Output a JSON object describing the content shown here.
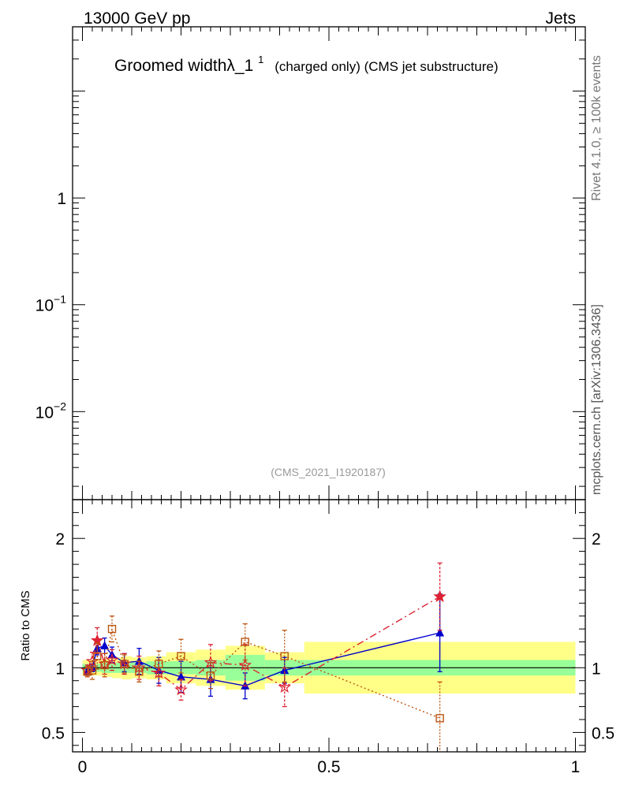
{
  "header": {
    "energy_label": "13000 GeV pp",
    "category_label": "Jets"
  },
  "side": {
    "rivet_label": "Rivet 4.1.0, ≥ 100k events",
    "mcplots_label": "mcplots.cern.ch [arXiv:1306.3436]"
  },
  "colors": {
    "band_inner": "#99ff99",
    "band_outer": "#ffff88",
    "series_blue": "#0000cc",
    "series_red": "#dd2233",
    "series_brown": "#bb5511"
  },
  "chart_data": [
    {
      "type": "line",
      "panel": "main",
      "title": "Groomed widthλ_1",
      "title_sup": "1",
      "subtitle": "(charged only) (CMS jet substructure)",
      "watermark": "(CMS_2021_I1920187)",
      "yscale": "log",
      "ylim": [
        0.0015,
        40
      ],
      "y_ticks": [
        {
          "value": 1,
          "base": "1",
          "exp": ""
        },
        {
          "value": 0.1,
          "base": "10",
          "exp": "−1"
        },
        {
          "value": 0.01,
          "base": "10",
          "exp": "−2"
        }
      ],
      "series": []
    },
    {
      "type": "line",
      "panel": "ratio",
      "ylabel": "Ratio to CMS",
      "xlim": [
        -0.02,
        1.02
      ],
      "ylim": [
        0.35,
        2.3
      ],
      "x_ticks": [
        {
          "value": 0,
          "label": "0"
        },
        {
          "value": 0.5,
          "label": "0.5"
        },
        {
          "value": 1,
          "label": "1"
        }
      ],
      "y_ticks": [
        {
          "value": 0.5,
          "label": "0.5"
        },
        {
          "value": 1,
          "label": "1"
        },
        {
          "value": 2,
          "label": "2"
        }
      ],
      "reference_line": 1,
      "bands": [
        {
          "x0": 0.0,
          "x1": 0.02,
          "inner": 0.03,
          "outer": 0.06
        },
        {
          "x0": 0.02,
          "x1": 0.04,
          "inner": 0.03,
          "outer": 0.06
        },
        {
          "x0": 0.04,
          "x1": 0.06,
          "inner": 0.04,
          "outer": 0.07
        },
        {
          "x0": 0.06,
          "x1": 0.08,
          "inner": 0.04,
          "outer": 0.08
        },
        {
          "x0": 0.08,
          "x1": 0.1,
          "inner": 0.04,
          "outer": 0.09
        },
        {
          "x0": 0.1,
          "x1": 0.13,
          "inner": 0.04,
          "outer": 0.08
        },
        {
          "x0": 0.13,
          "x1": 0.17,
          "inner": 0.05,
          "outer": 0.09
        },
        {
          "x0": 0.17,
          "x1": 0.23,
          "inner": 0.05,
          "outer": 0.12
        },
        {
          "x0": 0.23,
          "x1": 0.29,
          "inner": 0.06,
          "outer": 0.14
        },
        {
          "x0": 0.29,
          "x1": 0.37,
          "inner": 0.1,
          "outer": 0.17
        },
        {
          "x0": 0.37,
          "x1": 0.45,
          "inner": 0.06,
          "outer": 0.12
        },
        {
          "x0": 0.45,
          "x1": 1.0,
          "inner": 0.06,
          "outer": 0.2
        }
      ],
      "series": [
        {
          "name": "blue-triangles",
          "color": "#0000cc",
          "marker": "triangle",
          "dash": "",
          "x": [
            0.01,
            0.02,
            0.03,
            0.045,
            0.06,
            0.085,
            0.115,
            0.155,
            0.2,
            0.26,
            0.33,
            0.41,
            0.725
          ],
          "y": [
            0.97,
            1.0,
            1.15,
            1.17,
            1.1,
            1.04,
            1.05,
            0.98,
            0.93,
            0.91,
            0.86,
            0.98,
            1.27
          ],
          "err": [
            0.02,
            0.03,
            0.05,
            0.06,
            0.06,
            0.07,
            0.1,
            0.1,
            0.12,
            0.13,
            0.1,
            0.1,
            0.3
          ]
        },
        {
          "name": "red-stars",
          "color": "#dd2233",
          "marker": "star",
          "dash": "9,4,2,4",
          "x": [
            0.01,
            0.02,
            0.03,
            0.045,
            0.06,
            0.085,
            0.115,
            0.155,
            0.2,
            0.26,
            0.33,
            0.41,
            0.725
          ],
          "y": [
            0.98,
            1.05,
            1.21,
            1.03,
            1.06,
            1.03,
            1.0,
            0.96,
            0.83,
            1.04,
            1.02,
            0.85,
            1.55
          ],
          "err": [
            0.04,
            0.07,
            0.1,
            0.08,
            0.08,
            0.08,
            0.09,
            0.1,
            0.08,
            0.14,
            0.16,
            0.15,
            0.26
          ]
        },
        {
          "name": "brown-squares",
          "color": "#bb5511",
          "marker": "square",
          "dash": "2,3",
          "x": [
            0.01,
            0.02,
            0.03,
            0.045,
            0.06,
            0.085,
            0.115,
            0.155,
            0.2,
            0.26,
            0.33,
            0.41,
            0.725
          ],
          "y": [
            0.97,
            0.98,
            1.09,
            1.02,
            1.3,
            1.03,
            0.97,
            1.03,
            1.09,
            0.94,
            1.2,
            1.09,
            0.61
          ],
          "err": [
            0.04,
            0.07,
            0.1,
            0.09,
            0.1,
            0.07,
            0.08,
            0.1,
            0.13,
            0.1,
            0.14,
            0.2,
            0.28
          ]
        }
      ]
    }
  ]
}
